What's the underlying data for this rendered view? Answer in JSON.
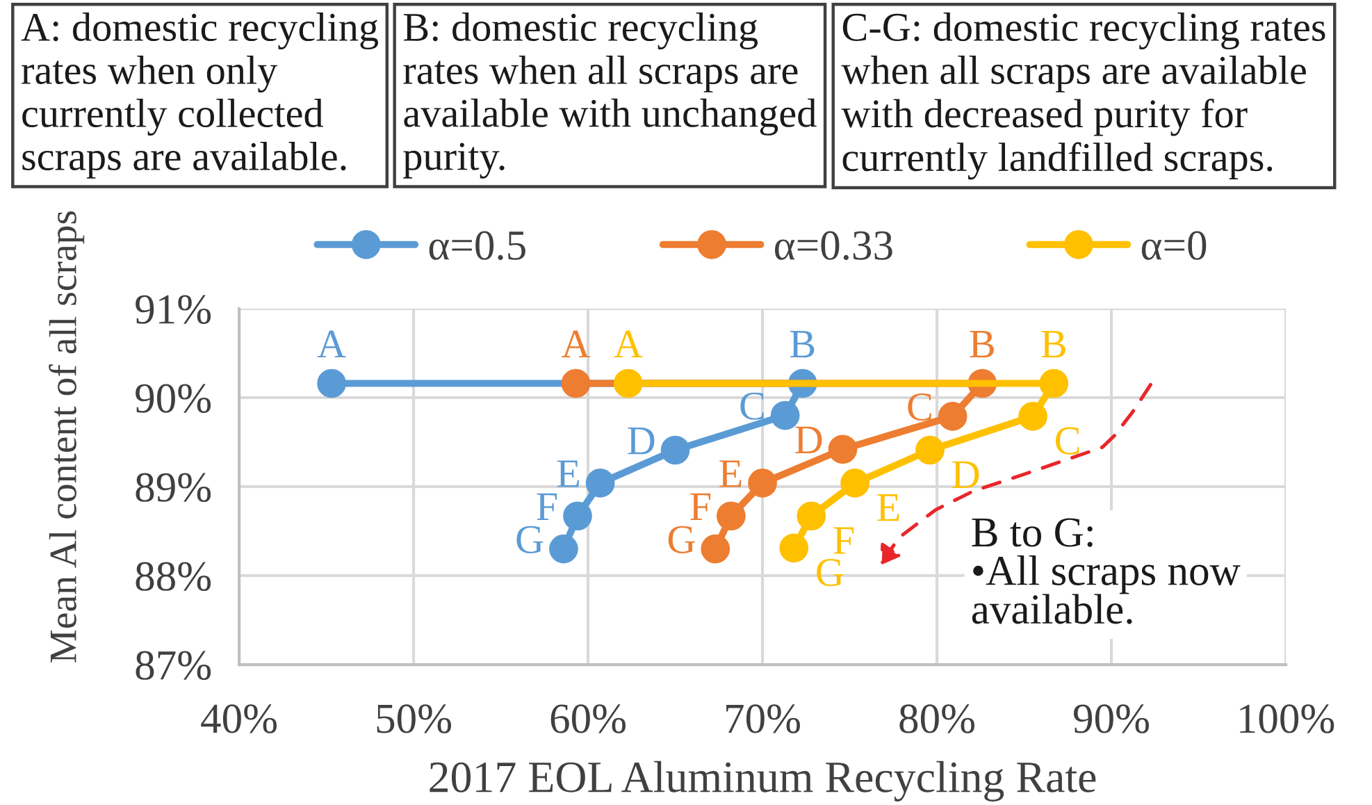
{
  "chart_data": {
    "type": "line",
    "xlabel": "2017 EOL Aluminum Recycling Rate",
    "ylabel": "Mean Al content of all scraps",
    "series": [
      {
        "name": "α=0.5",
        "color": "#5b9bd5",
        "x": [
          45.3,
          72.3,
          71.3,
          65.0,
          60.7,
          59.4,
          58.6
        ],
        "values": [
          90.16,
          90.16,
          89.8,
          89.41,
          89.04,
          88.67,
          88.3
        ],
        "value_labels": [
          "A",
          "B",
          "C",
          "D",
          "E",
          "F",
          "G"
        ]
      },
      {
        "name": "α=0.33",
        "color": "#ed7d31",
        "x": [
          59.3,
          82.6,
          80.9,
          74.6,
          70.0,
          68.2,
          67.3
        ],
        "values": [
          90.16,
          90.16,
          89.79,
          89.42,
          89.04,
          88.67,
          88.3
        ],
        "value_labels": [
          "A",
          "B",
          "C",
          "D",
          "E",
          "F",
          "G"
        ]
      },
      {
        "name": "α=0",
        "color": "#ffc000",
        "x": [
          62.3,
          86.7,
          85.5,
          79.6,
          75.3,
          72.8,
          71.8
        ],
        "values": [
          90.16,
          90.16,
          89.79,
          89.41,
          89.04,
          88.67,
          88.31
        ],
        "value_labels": [
          "A",
          "B",
          "C",
          "D",
          "E",
          "F",
          "G"
        ]
      }
    ],
    "xlim": [
      40,
      100
    ],
    "xticks": [
      {
        "value": 40,
        "label": "40%"
      },
      {
        "value": 50,
        "label": "50%"
      },
      {
        "value": 60,
        "label": "60%"
      },
      {
        "value": 70,
        "label": "70%"
      },
      {
        "value": 80,
        "label": "80%"
      },
      {
        "value": 90,
        "label": "90%"
      },
      {
        "value": 100,
        "label": "100%"
      }
    ],
    "ylim": [
      87,
      91
    ],
    "yticks": [
      {
        "value": 87,
        "label": "87%"
      },
      {
        "value": 88,
        "label": "88%"
      },
      {
        "value": 89,
        "label": "89%"
      },
      {
        "value": 90,
        "label": "90%"
      },
      {
        "value": 91,
        "label": "91%"
      }
    ],
    "grid": true,
    "legend": "top",
    "marker": "circle",
    "line_style": "solid",
    "annotations": [
      "A: domestic recycling\nrates when only\ncurrently collected\nscraps are available.",
      "B: domestic recycling\nrates when all scraps are\navailable with unchanged\npurity.",
      "C-G: domestic recycling rates\nwhen all scraps are available\nwith decreased purity for\ncurrently landfilled scraps.",
      "B to G:\n•All scraps now\navailable."
    ]
  }
}
